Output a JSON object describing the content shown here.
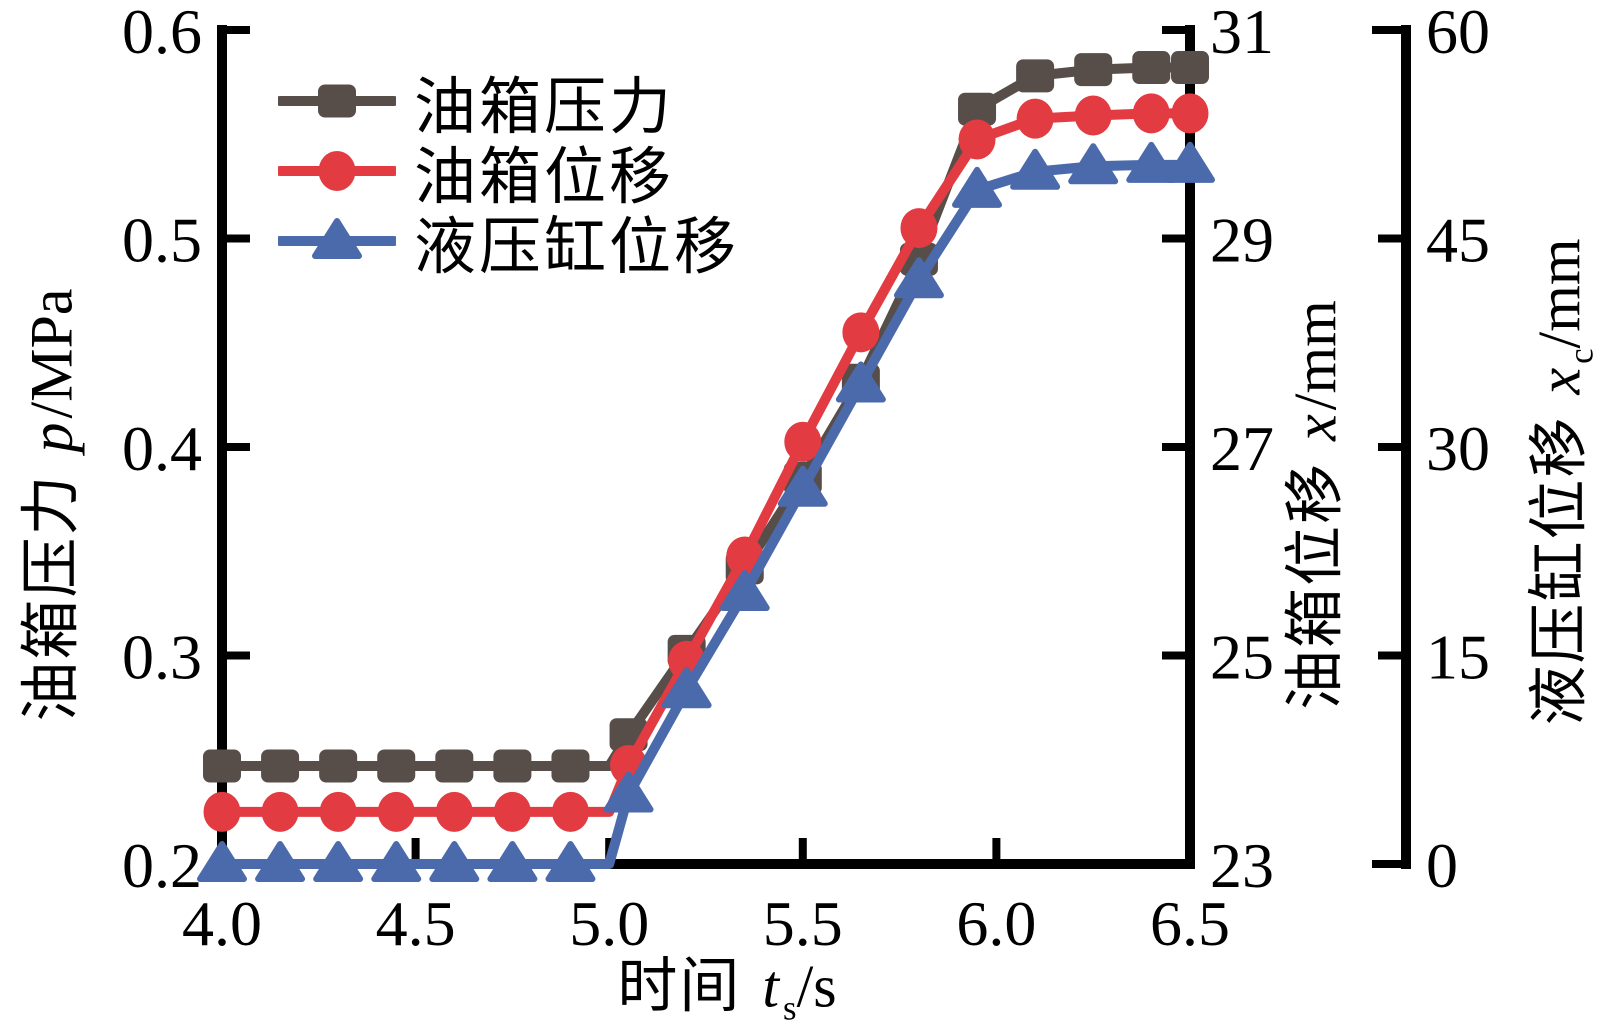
{
  "figure": {
    "background": "#ffffff",
    "axis_color": "#000000"
  },
  "legend": {
    "items": [
      {
        "label": "油箱压力",
        "marker": "square",
        "color": "#574e4a"
      },
      {
        "label": "油箱位移",
        "marker": "circle",
        "color": "#e23b42"
      },
      {
        "label": "液压缸位移",
        "marker": "triangle",
        "color": "#4b6aab"
      }
    ]
  },
  "axis_titles": {
    "x": {
      "prefix": "时间 ",
      "variable": "t",
      "subscript": "s",
      "unit": "/s"
    },
    "left": {
      "prefix": "油箱压力 ",
      "variable": "p",
      "subscript": "",
      "unit": "/MPa"
    },
    "right1": {
      "prefix": "油箱位移 ",
      "variable": "x",
      "subscript": "",
      "unit": "/mm"
    },
    "right2": {
      "prefix": "液压缸位移 ",
      "variable": "x",
      "subscript": "c",
      "unit": "/mm"
    }
  },
  "chart_data": {
    "type": "line",
    "title": "",
    "grid": false,
    "legend_position": "upper-left",
    "x": [
      4.0,
      4.15,
      4.3,
      4.45,
      4.6,
      4.75,
      4.9,
      5.0,
      5.05,
      5.2,
      5.35,
      5.5,
      5.65,
      5.8,
      5.95,
      6.1,
      6.25,
      6.4,
      6.5
    ],
    "line_only_x": [
      5.0
    ],
    "series": [
      {
        "name": "油箱压力",
        "yaxis": "left",
        "marker": "square",
        "color": "#574e4a",
        "values": [
          0.247,
          0.247,
          0.247,
          0.247,
          0.247,
          0.247,
          0.247,
          0.247,
          0.262,
          0.302,
          0.342,
          0.385,
          0.432,
          0.49,
          0.562,
          0.578,
          0.581,
          0.582,
          0.582
        ]
      },
      {
        "name": "油箱位移",
        "yaxis": "right1",
        "marker": "circle",
        "color": "#e23b42",
        "values": [
          23.5,
          23.5,
          23.5,
          23.5,
          23.5,
          23.5,
          23.5,
          23.5,
          23.95,
          24.95,
          25.95,
          27.05,
          28.1,
          29.1,
          29.95,
          30.15,
          30.18,
          30.2,
          30.2
        ]
      },
      {
        "name": "液压缸位移",
        "yaxis": "right2",
        "marker": "triangle",
        "color": "#4b6aab",
        "values": [
          0,
          0,
          0,
          0,
          0,
          0,
          0,
          0,
          5,
          12.5,
          19.5,
          27,
          34.5,
          42,
          48.5,
          49.8,
          50.2,
          50.3,
          50.3
        ]
      }
    ],
    "axes": {
      "x": {
        "label": "时间 ts/s",
        "range": [
          4.0,
          6.5
        ],
        "tick_values": [
          4.0,
          4.5,
          5.0,
          5.5,
          6.0,
          6.5
        ],
        "tick_labels": [
          "4.0",
          "4.5",
          "5.0",
          "5.5",
          "6.0",
          "6.5"
        ]
      },
      "left": {
        "label": "油箱压力 p/MPa",
        "range": [
          0.2,
          0.6
        ],
        "tick_values": [
          0.6,
          0.5,
          0.4,
          0.3,
          0.2
        ],
        "tick_labels": [
          "0.6",
          "0.5",
          "0.4",
          "0.3",
          "0.2"
        ]
      },
      "right1": {
        "label": "油箱位移 x/mm",
        "range": [
          23,
          31
        ],
        "tick_values": [
          31,
          29,
          27,
          25,
          23
        ],
        "tick_labels": [
          "31",
          "29",
          "27",
          "25",
          "23"
        ]
      },
      "right2": {
        "label": "液压缸位移 xc/mm",
        "range": [
          0,
          60
        ],
        "tick_values": [
          60,
          45,
          30,
          15,
          0
        ],
        "tick_labels": [
          "60",
          "45",
          "30",
          "15",
          "0"
        ]
      }
    }
  }
}
